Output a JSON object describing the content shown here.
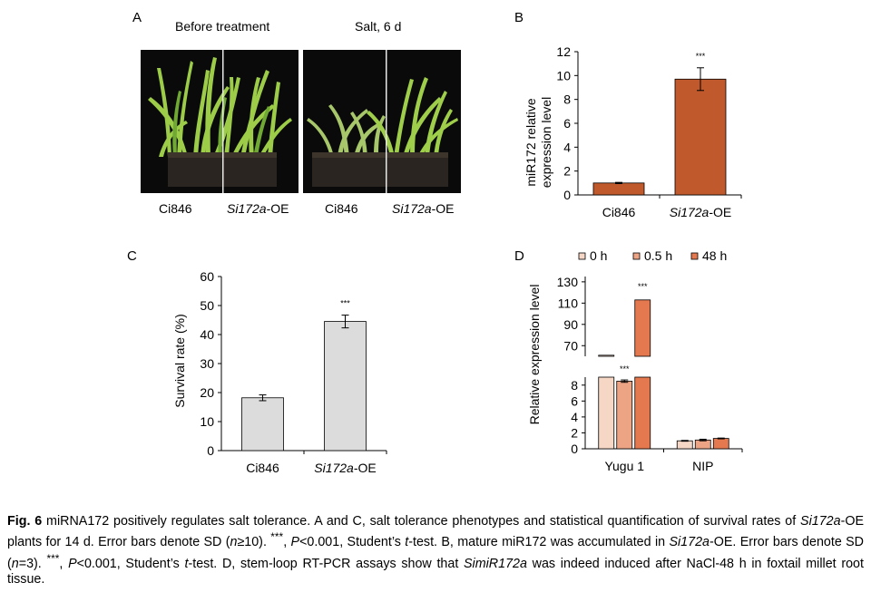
{
  "panel_letters": {
    "a": "A",
    "b": "B",
    "c": "C",
    "d": "D"
  },
  "panel_a": {
    "header_left": "Before treatment",
    "header_right": "Salt, 6 d",
    "labels": [
      {
        "text": "Ci846",
        "italic": false
      },
      {
        "prefix": "Si172a",
        "suffix": "-OE"
      },
      {
        "text": "Ci846",
        "italic": false
      },
      {
        "prefix": "Si172a",
        "suffix": "-OE"
      }
    ]
  },
  "chart_data": [
    {
      "panel": "B",
      "type": "bar",
      "categories": [
        "Ci846",
        "Si172a-OE"
      ],
      "values": [
        1.0,
        9.7
      ],
      "errors": [
        0.05,
        0.95
      ],
      "significance": [
        "",
        "***"
      ],
      "ylabel": "miR172 relative expression level",
      "ylabel_lines": [
        "miR172 relative",
        "expression level"
      ],
      "ylim": [
        0,
        12
      ],
      "yticks": [
        0,
        2,
        4,
        6,
        8,
        10,
        12
      ],
      "color": "#c0592b"
    },
    {
      "panel": "C",
      "type": "bar",
      "categories": [
        "Ci846",
        "Si172a-OE"
      ],
      "values": [
        18.2,
        44.5
      ],
      "errors": [
        1.0,
        2.2
      ],
      "significance": [
        "",
        "***"
      ],
      "ylabel": "Survival rate (%)",
      "ylim": [
        0,
        60
      ],
      "yticks": [
        0,
        10,
        20,
        30,
        40,
        50,
        60
      ],
      "color": "#dcdcdc"
    },
    {
      "panel": "D",
      "type": "bar",
      "categories": [
        "Yugu 1",
        "NIP"
      ],
      "series": [
        {
          "name": "0 h",
          "values": [
            61.0,
            1.0
          ],
          "errors": [
            0,
            0.05
          ],
          "color": "#f6d7c6"
        },
        {
          "name": "0.5 h",
          "values": [
            8.5,
            1.1
          ],
          "errors": [
            0.15,
            0.1
          ],
          "color": "#eda485"
        },
        {
          "name": "48 h",
          "values": [
            113.0,
            1.3
          ],
          "errors": [
            0,
            0.05
          ],
          "color": "#e4784f"
        }
      ],
      "significance": [
        [
          "",
          "***",
          "***"
        ],
        [
          "",
          "",
          ""
        ]
      ],
      "ylabel": "Relative expression level",
      "axis_break": true,
      "lower_ylim": [
        0,
        9
      ],
      "lower_yticks": [
        0,
        2,
        4,
        6,
        8
      ],
      "upper_ylim": [
        60,
        135
      ],
      "upper_yticks": [
        70,
        90,
        110,
        130
      ],
      "legend": "top"
    }
  ],
  "caption": {
    "lead": "Fig. 6",
    "title": " miRNA172 positively regulates salt tolerance.",
    "body_html": "  A and C, salt tolerance phenotypes and statistical quantification of survival rates of <i>Si172a</i>-OE plants for 14 d.  Error bars denote SD (<i>n</i>≥10).  <sup>***</sup>, <i>P</i>&lt;0.001, Student’s <i>t</i>-test.  B, mature miR172 was accumulated in <i>Si172a</i>-OE.  Error bars denote SD (<i>n</i>=3).  <sup>***</sup>, <i>P</i>&lt;0.001, Student’s <i>t</i>-test.  D, stem-loop RT-PCR assays show that <i>SimiR172a</i> was indeed induced after NaCl-48 h in foxtail millet root tissue."
  }
}
